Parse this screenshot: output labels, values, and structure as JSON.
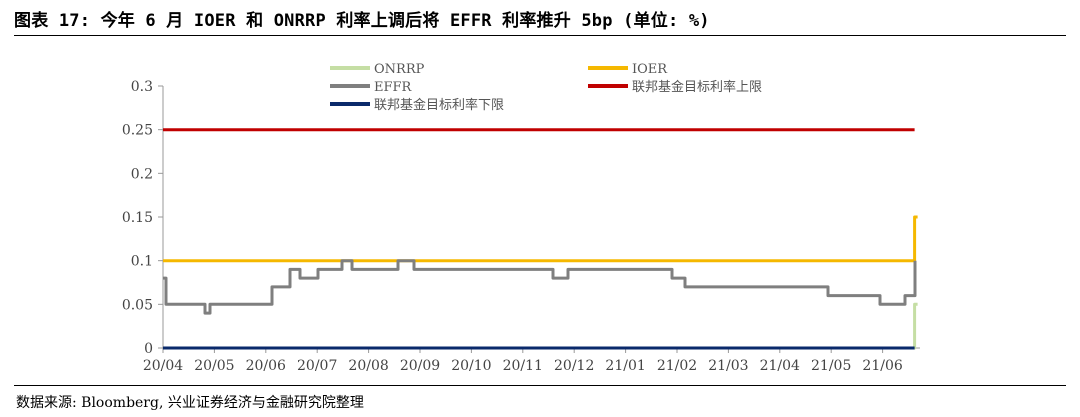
{
  "header": {
    "title": "图表 17: 今年 6 月 IOER 和 ONRRP 利率上调后将 EFFR 利率推升 5bp (单位: %)"
  },
  "footer": {
    "source": "数据来源: Bloomberg, 兴业证券经济与金融研究院整理"
  },
  "chart_data": {
    "type": "line",
    "x_tick_labels": [
      "20/04",
      "20/05",
      "20/06",
      "20/07",
      "20/08",
      "20/09",
      "20/10",
      "20/11",
      "20/12",
      "21/01",
      "21/02",
      "21/03",
      "21/04",
      "21/05",
      "21/06"
    ],
    "y_tick_labels": [
      "0",
      "0.05",
      "0.1",
      "0.15",
      "0.2",
      "0.25",
      "0.3"
    ],
    "ylim": [
      0,
      0.3
    ],
    "grid": false,
    "legend_placement": "top-center",
    "series": [
      {
        "name": "ONRRP",
        "color": "#c5dea4",
        "points": [
          [
            "20/04",
            0
          ],
          [
            "21/06 mid",
            0
          ],
          [
            "21/06 end",
            0.05
          ]
        ]
      },
      {
        "name": "IOER",
        "color": "#f5b800",
        "points": [
          [
            "20/04",
            0.1
          ],
          [
            "21/06 mid",
            0.1
          ],
          [
            "21/06 end",
            0.15
          ]
        ]
      },
      {
        "name": "EFFR",
        "color": "#7f7f7f",
        "points": [
          [
            "20/04",
            0.08
          ],
          [
            "20/04",
            0.05
          ],
          [
            "20/05",
            0.05
          ],
          [
            "20/05",
            0.04
          ],
          [
            "20/05",
            0.05
          ],
          [
            "20/06",
            0.05
          ],
          [
            "20/06",
            0.07
          ],
          [
            "20/06",
            0.09
          ],
          [
            "20/07",
            0.08
          ],
          [
            "20/07",
            0.09
          ],
          [
            "20/07",
            0.1
          ],
          [
            "20/08",
            0.09
          ],
          [
            "20/08",
            0.1
          ],
          [
            "20/08",
            0.1
          ],
          [
            "20/09",
            0.09
          ],
          [
            "20/10",
            0.09
          ],
          [
            "20/11",
            0.09
          ],
          [
            "20/12",
            0.08
          ],
          [
            "20/12",
            0.09
          ],
          [
            "21/01",
            0.09
          ],
          [
            "21/02",
            0.08
          ],
          [
            "21/02",
            0.07
          ],
          [
            "21/03",
            0.07
          ],
          [
            "21/04",
            0.07
          ],
          [
            "21/04",
            0.06
          ],
          [
            "21/05",
            0.06
          ],
          [
            "21/05",
            0.05
          ],
          [
            "21/06",
            0.06
          ],
          [
            "21/06 end",
            0.06
          ],
          [
            "21/06 end",
            0.1
          ]
        ]
      },
      {
        "name": "联邦基金目标利率上限",
        "color": "#c00000",
        "points": [
          [
            "20/04",
            0.25
          ],
          [
            "21/06 end",
            0.25
          ]
        ]
      },
      {
        "name": "联邦基金目标利率下限",
        "color": "#0a2a6b",
        "points": [
          [
            "20/04",
            0
          ],
          [
            "21/06 end",
            0
          ]
        ]
      }
    ]
  }
}
